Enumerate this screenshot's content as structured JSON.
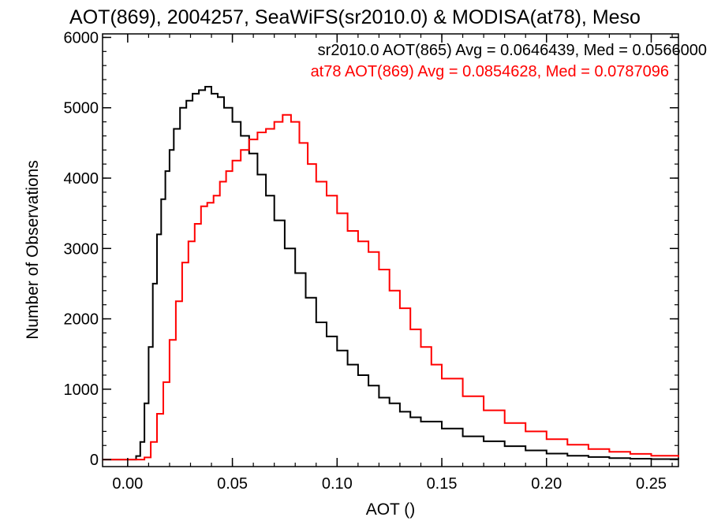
{
  "chart_data": {
    "type": "line",
    "step": true,
    "title": "AOT(869), 2004257, SeaWiFS(sr2010.0) & MODISA(at78), Meso",
    "xlabel": "AOT ()",
    "ylabel": "Number of Observations",
    "xlim": [
      -0.012,
      0.263
    ],
    "ylim": [
      -100,
      6050
    ],
    "x_ticks": [
      0.0,
      0.05,
      0.1,
      0.15,
      0.2,
      0.25
    ],
    "x_tick_labels": [
      "0.00",
      "0.05",
      "0.10",
      "0.15",
      "0.20",
      "0.25"
    ],
    "y_ticks": [
      0,
      1000,
      2000,
      3000,
      4000,
      5000,
      6000
    ],
    "y_tick_labels": [
      "0",
      "1000",
      "2000",
      "3000",
      "4000",
      "5000",
      "6000"
    ],
    "grid": false,
    "annotations": [
      {
        "text": "sr2010.0 AOT(865) Avg = 0.0646439, Med = 0.0566000",
        "color": "#000000"
      },
      {
        "text": "at78 AOT(869) Avg = 0.0854628, Med = 0.0787096",
        "color": "#ff0000"
      }
    ],
    "series": [
      {
        "color": "#000000",
        "x": [
          -0.012,
          0.0,
          0.004,
          0.006,
          0.008,
          0.01,
          0.012,
          0.014,
          0.016,
          0.018,
          0.02,
          0.022,
          0.025,
          0.028,
          0.031,
          0.034,
          0.037,
          0.04,
          0.043,
          0.046,
          0.05,
          0.054,
          0.058,
          0.062,
          0.066,
          0.07,
          0.075,
          0.08,
          0.085,
          0.09,
          0.095,
          0.1,
          0.105,
          0.11,
          0.115,
          0.12,
          0.125,
          0.13,
          0.135,
          0.14,
          0.15,
          0.16,
          0.17,
          0.18,
          0.19,
          0.2,
          0.21,
          0.22,
          0.23,
          0.24,
          0.25,
          0.263
        ],
        "y": [
          0,
          0,
          50,
          250,
          800,
          1600,
          2500,
          3200,
          3700,
          4100,
          4400,
          4700,
          5000,
          5100,
          5200,
          5250,
          5300,
          5200,
          5150,
          5000,
          4800,
          4600,
          4350,
          4050,
          3750,
          3400,
          3000,
          2650,
          2300,
          1950,
          1750,
          1550,
          1350,
          1200,
          1050,
          880,
          800,
          680,
          600,
          540,
          440,
          330,
          260,
          190,
          130,
          85,
          55,
          35,
          20,
          12,
          6,
          4
        ]
      },
      {
        "color": "#ff0000",
        "x": [
          -0.012,
          0.0,
          0.008,
          0.011,
          0.014,
          0.017,
          0.02,
          0.023,
          0.026,
          0.029,
          0.032,
          0.035,
          0.038,
          0.041,
          0.044,
          0.047,
          0.05,
          0.054,
          0.058,
          0.062,
          0.066,
          0.07,
          0.074,
          0.078,
          0.082,
          0.086,
          0.09,
          0.095,
          0.1,
          0.105,
          0.11,
          0.115,
          0.12,
          0.125,
          0.13,
          0.135,
          0.14,
          0.145,
          0.15,
          0.16,
          0.17,
          0.18,
          0.19,
          0.2,
          0.21,
          0.22,
          0.23,
          0.24,
          0.25,
          0.263
        ],
        "y": [
          0,
          0,
          30,
          250,
          650,
          1100,
          1700,
          2250,
          2800,
          3100,
          3350,
          3600,
          3650,
          3750,
          3950,
          4100,
          4250,
          4400,
          4550,
          4650,
          4700,
          4800,
          4900,
          4800,
          4500,
          4200,
          3950,
          3750,
          3500,
          3250,
          3100,
          2950,
          2700,
          2400,
          2150,
          1850,
          1600,
          1350,
          1150,
          900,
          700,
          520,
          400,
          290,
          210,
          150,
          110,
          80,
          55,
          35
        ]
      }
    ]
  }
}
